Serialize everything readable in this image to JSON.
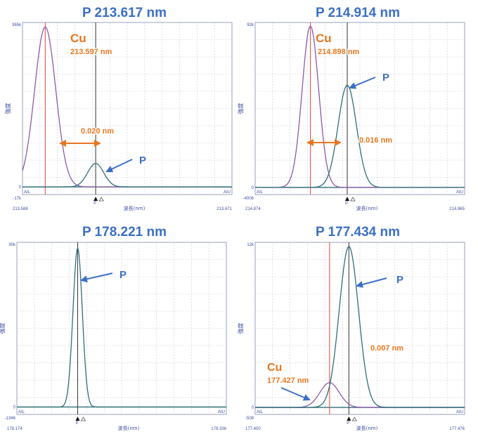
{
  "chart_data": [
    {
      "type": "line",
      "title": "P 213.617 nm",
      "xlabel": "波長(nm)",
      "ylabel": "強度",
      "xlim": [
        213.588,
        213.671
      ],
      "ylim": [
        -17,
        365
      ],
      "y_unit_note": "k",
      "tick_labels": {
        "x_left": "213.588",
        "x_right": "213.671",
        "y_top": "365k",
        "y_bottom": "-17k",
        "y_zero": "0"
      },
      "corner_labels": [
        "AIL",
        "AIU"
      ],
      "marker_label": "P",
      "series": [
        {
          "color": "#8c5aa8",
          "peak_x": 213.597,
          "peak_y": 355,
          "width": 0.0042
        },
        {
          "color": "#2f6f78",
          "peak_x": 213.617,
          "peak_y": 52,
          "width": 0.0032
        }
      ],
      "vlines": [
        {
          "x": 213.597,
          "color": "#e8433a"
        },
        {
          "x": 213.617,
          "color": "#333333"
        }
      ],
      "annotations": [
        {
          "text": "Cu",
          "kind": "element"
        },
        {
          "text": "213.597 nm",
          "kind": "wavelength"
        },
        {
          "text": "0.020 nm",
          "kind": "delta"
        },
        {
          "text": "P",
          "kind": "peak"
        }
      ]
    },
    {
      "type": "line",
      "title": "P 214.914 nm",
      "xlabel": "波長(nm)",
      "ylabel": "強度",
      "xlim": [
        214.874,
        214.965
      ],
      "ylim": [
        -4.006,
        92
      ],
      "y_unit_note": "k",
      "tick_labels": {
        "x_left": "214.874",
        "x_right": "214.965",
        "y_top": "92k",
        "y_bottom": "-4006",
        "y_zero": "0"
      },
      "corner_labels": [
        "AIL",
        "AIU"
      ],
      "marker_label": "P",
      "series": [
        {
          "color": "#8c5aa8",
          "peak_x": 214.898,
          "peak_y": 90,
          "width": 0.0036
        },
        {
          "color": "#2f6f78",
          "peak_x": 214.914,
          "peak_y": 57,
          "width": 0.004
        }
      ],
      "vlines": [
        {
          "x": 214.898,
          "color": "#e8433a"
        },
        {
          "x": 214.914,
          "color": "#333333"
        }
      ],
      "annotations": [
        {
          "text": "Cu",
          "kind": "element"
        },
        {
          "text": "214.898 nm",
          "kind": "wavelength"
        },
        {
          "text": "0.016 nm",
          "kind": "delta"
        },
        {
          "text": "P",
          "kind": "peak"
        }
      ]
    },
    {
      "type": "line",
      "title": "P 178.221 nm",
      "xlabel": "波長(nm)",
      "ylabel": "強度",
      "xlim": [
        178.174,
        178.336
      ],
      "ylim": [
        -1.346,
        30
      ],
      "y_unit_note": "k",
      "tick_labels": {
        "x_left": "178.174",
        "x_right": "178.336",
        "y_top": "30k",
        "y_bottom": "-1346",
        "y_zero": "0"
      },
      "corner_labels": [
        "AIL",
        "AIU"
      ],
      "marker_label": "P",
      "series": [
        {
          "color": "#2f6f78",
          "peak_x": 178.221,
          "peak_y": 29.0,
          "width": 0.0036
        }
      ],
      "vlines": [
        {
          "x": 178.221,
          "color": "#333333"
        }
      ],
      "annotations": [
        {
          "text": "P",
          "kind": "peak"
        }
      ]
    },
    {
      "type": "line",
      "title": "P 177.434 nm",
      "xlabel": "波長(nm)",
      "ylabel": "強度",
      "xlim": [
        177.4,
        177.476
      ],
      "ylim": [
        -0.508,
        12
      ],
      "y_unit_note": "k",
      "tick_labels": {
        "x_left": "177.400",
        "x_right": "177.476",
        "y_top": "12k",
        "y_bottom": "-508",
        "y_zero": "0"
      },
      "corner_labels": [
        "AIL",
        "AIU"
      ],
      "marker_label": "P",
      "series": [
        {
          "color": "#8c5aa8",
          "peak_x": 177.427,
          "peak_y": 1.8,
          "width": 0.0035
        },
        {
          "color": "#2f6f78",
          "peak_x": 177.434,
          "peak_y": 11.7,
          "width": 0.0035
        }
      ],
      "vlines": [
        {
          "x": 177.427,
          "color": "#e8433a"
        },
        {
          "x": 177.434,
          "color": "#333333"
        }
      ],
      "annotations": [
        {
          "text": "P",
          "kind": "peak"
        },
        {
          "text": "0.007 nm",
          "kind": "delta"
        },
        {
          "text": "Cu",
          "kind": "element"
        },
        {
          "text": "177.427 nm",
          "kind": "wavelength"
        }
      ]
    }
  ]
}
